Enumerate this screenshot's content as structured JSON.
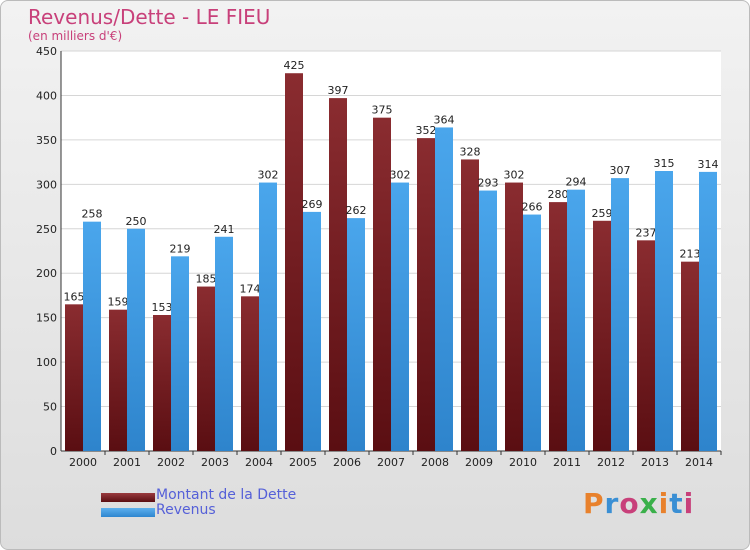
{
  "header": {
    "title": "Revenus/Dette - LE FIEU",
    "subtitle": "(en milliers d'€)"
  },
  "logo": {
    "text": "Proxiti",
    "colors": [
      "#e8812c",
      "#3a8fd4",
      "#c8407a",
      "#3ab04a",
      "#e8812c",
      "#3a8fd4",
      "#c8407a"
    ]
  },
  "colors": {
    "dette": "#7a1f24",
    "revenus": "#3d9be4",
    "title": "#c8407a",
    "legend_text": "#5560d8"
  },
  "chart_data": {
    "type": "bar",
    "title": "Revenus/Dette - LE FIEU",
    "subtitle": "(en milliers d'€)",
    "categories": [
      "2000",
      "2001",
      "2002",
      "2003",
      "2004",
      "2005",
      "2006",
      "2007",
      "2008",
      "2009",
      "2010",
      "2011",
      "2012",
      "2013",
      "2014"
    ],
    "series": [
      {
        "name": "Montant de la Dette",
        "color": "#7a1f24",
        "values": [
          165,
          159,
          153,
          185,
          174,
          425,
          397,
          375,
          352,
          328,
          302,
          280,
          259,
          237,
          213
        ]
      },
      {
        "name": "Revenus",
        "color": "#3d9be4",
        "values": [
          258,
          250,
          219,
          241,
          302,
          269,
          262,
          302,
          364,
          293,
          266,
          294,
          307,
          315,
          314
        ]
      }
    ],
    "ylim": [
      0,
      450
    ],
    "yticks": [
      0,
      50,
      100,
      150,
      200,
      250,
      300,
      350,
      400,
      450
    ],
    "grid": true,
    "legend_position": "bottom-left"
  }
}
